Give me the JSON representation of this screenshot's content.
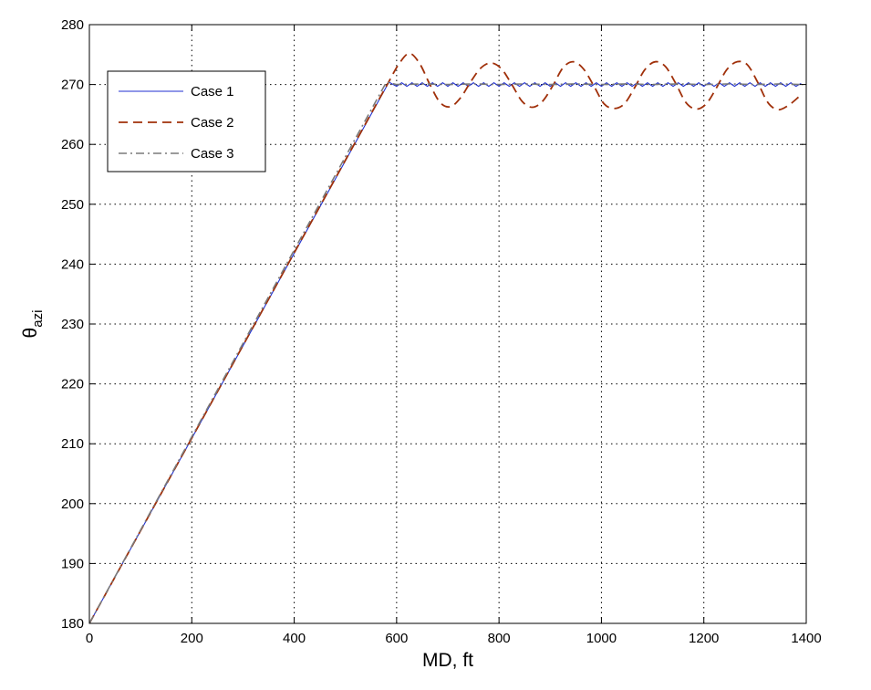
{
  "chart_data": {
    "type": "line",
    "title": "",
    "xlabel": "MD, ft",
    "ylabel": {
      "main": "θ",
      "sub": "azi"
    },
    "xlim": [
      0,
      1400
    ],
    "ylim": [
      180,
      280
    ],
    "xticks": [
      0,
      200,
      400,
      600,
      800,
      1000,
      1200,
      1400
    ],
    "yticks": [
      180,
      190,
      200,
      210,
      220,
      230,
      240,
      250,
      260,
      270,
      280
    ],
    "xtick_labels": [
      "0",
      "200",
      "400",
      "600",
      "800",
      "1000",
      "1200",
      "1400"
    ],
    "ytick_labels": [
      "180",
      "190",
      "200",
      "210",
      "220",
      "230",
      "240",
      "250",
      "260",
      "270",
      "280"
    ],
    "grid": true,
    "legend_position": "top-left",
    "series": [
      {
        "name": "Case 1",
        "color": "#1f2fd0",
        "style": "solid",
        "x": [
          0,
          585,
          600,
          610,
          620,
          630,
          640,
          650,
          660,
          670,
          680,
          690,
          700,
          710,
          720,
          730,
          740,
          750,
          760,
          770,
          780,
          790,
          800,
          810,
          820,
          830,
          840,
          850,
          860,
          870,
          880,
          890,
          900,
          910,
          920,
          930,
          940,
          950,
          960,
          970,
          980,
          990,
          1000,
          1010,
          1020,
          1030,
          1040,
          1050,
          1060,
          1070,
          1080,
          1090,
          1100,
          1110,
          1120,
          1130,
          1140,
          1150,
          1160,
          1170,
          1180,
          1190,
          1200,
          1210,
          1220,
          1230,
          1240,
          1250,
          1260,
          1270,
          1280,
          1290,
          1300,
          1310,
          1320,
          1330,
          1340,
          1350,
          1360,
          1370,
          1380,
          1390
        ],
        "y": [
          180,
          270.4,
          269.7,
          270.3,
          269.7,
          270.3,
          269.7,
          270.3,
          269.7,
          270.3,
          269.7,
          270.3,
          269.7,
          270.3,
          269.7,
          270.3,
          269.7,
          270.3,
          269.7,
          270.3,
          269.7,
          270.3,
          269.7,
          270.3,
          269.7,
          270.3,
          269.7,
          270.3,
          269.7,
          270.3,
          269.7,
          270.3,
          269.7,
          270.3,
          269.7,
          270.3,
          269.7,
          270.3,
          269.7,
          270.3,
          269.7,
          270.3,
          269.7,
          270.3,
          269.7,
          270.3,
          269.7,
          270.3,
          269.7,
          270.3,
          269.7,
          270.3,
          269.7,
          270.3,
          269.7,
          270.3,
          269.7,
          270.3,
          269.7,
          270.3,
          269.7,
          270.3,
          269.7,
          270.3,
          269.7,
          270.3,
          269.7,
          270.3,
          269.7,
          270.3,
          269.7,
          270.3,
          269.7,
          270.3,
          269.7,
          270.3,
          269.7,
          270.3,
          269.7,
          270.3,
          269.7,
          270.2
        ]
      },
      {
        "name": "Case 2",
        "color": "#a0300a",
        "style": "dashed",
        "x": [
          0,
          585,
          605,
          625,
          645,
          665,
          685,
          705,
          725,
          745,
          765,
          785,
          805,
          825,
          845,
          865,
          885,
          905,
          925,
          945,
          965,
          985,
          1005,
          1025,
          1045,
          1065,
          1085,
          1105,
          1125,
          1145,
          1165,
          1185,
          1205,
          1225,
          1245,
          1265,
          1285,
          1305,
          1325,
          1345,
          1365,
          1385
        ],
        "y": [
          180,
          270.5,
          273.5,
          275.2,
          273.5,
          270,
          267,
          266.3,
          267.8,
          270.5,
          272.8,
          273.6,
          272.6,
          270,
          267.2,
          266.2,
          267.2,
          269.8,
          272.8,
          273.8,
          272.6,
          269.8,
          266.8,
          266,
          266.8,
          269.5,
          272.5,
          273.8,
          273,
          270.2,
          267,
          265.9,
          266.8,
          269.5,
          272.5,
          273.8,
          273.3,
          270.4,
          267,
          265.8,
          266.5,
          267.9
        ]
      },
      {
        "name": "Case 3",
        "color": "#7a7a7a",
        "style": "dashdot",
        "x": [
          0,
          580,
          600,
          650,
          700,
          750,
          800,
          850,
          900,
          950,
          1000,
          1050,
          1100,
          1150,
          1200,
          1250,
          1300,
          1350,
          1390
        ],
        "y": [
          180,
          270.4,
          270,
          270.1,
          270,
          270.1,
          270,
          270.1,
          270,
          270.1,
          270,
          270.1,
          270,
          270.1,
          270,
          270.1,
          270,
          270.1,
          270
        ]
      }
    ]
  }
}
